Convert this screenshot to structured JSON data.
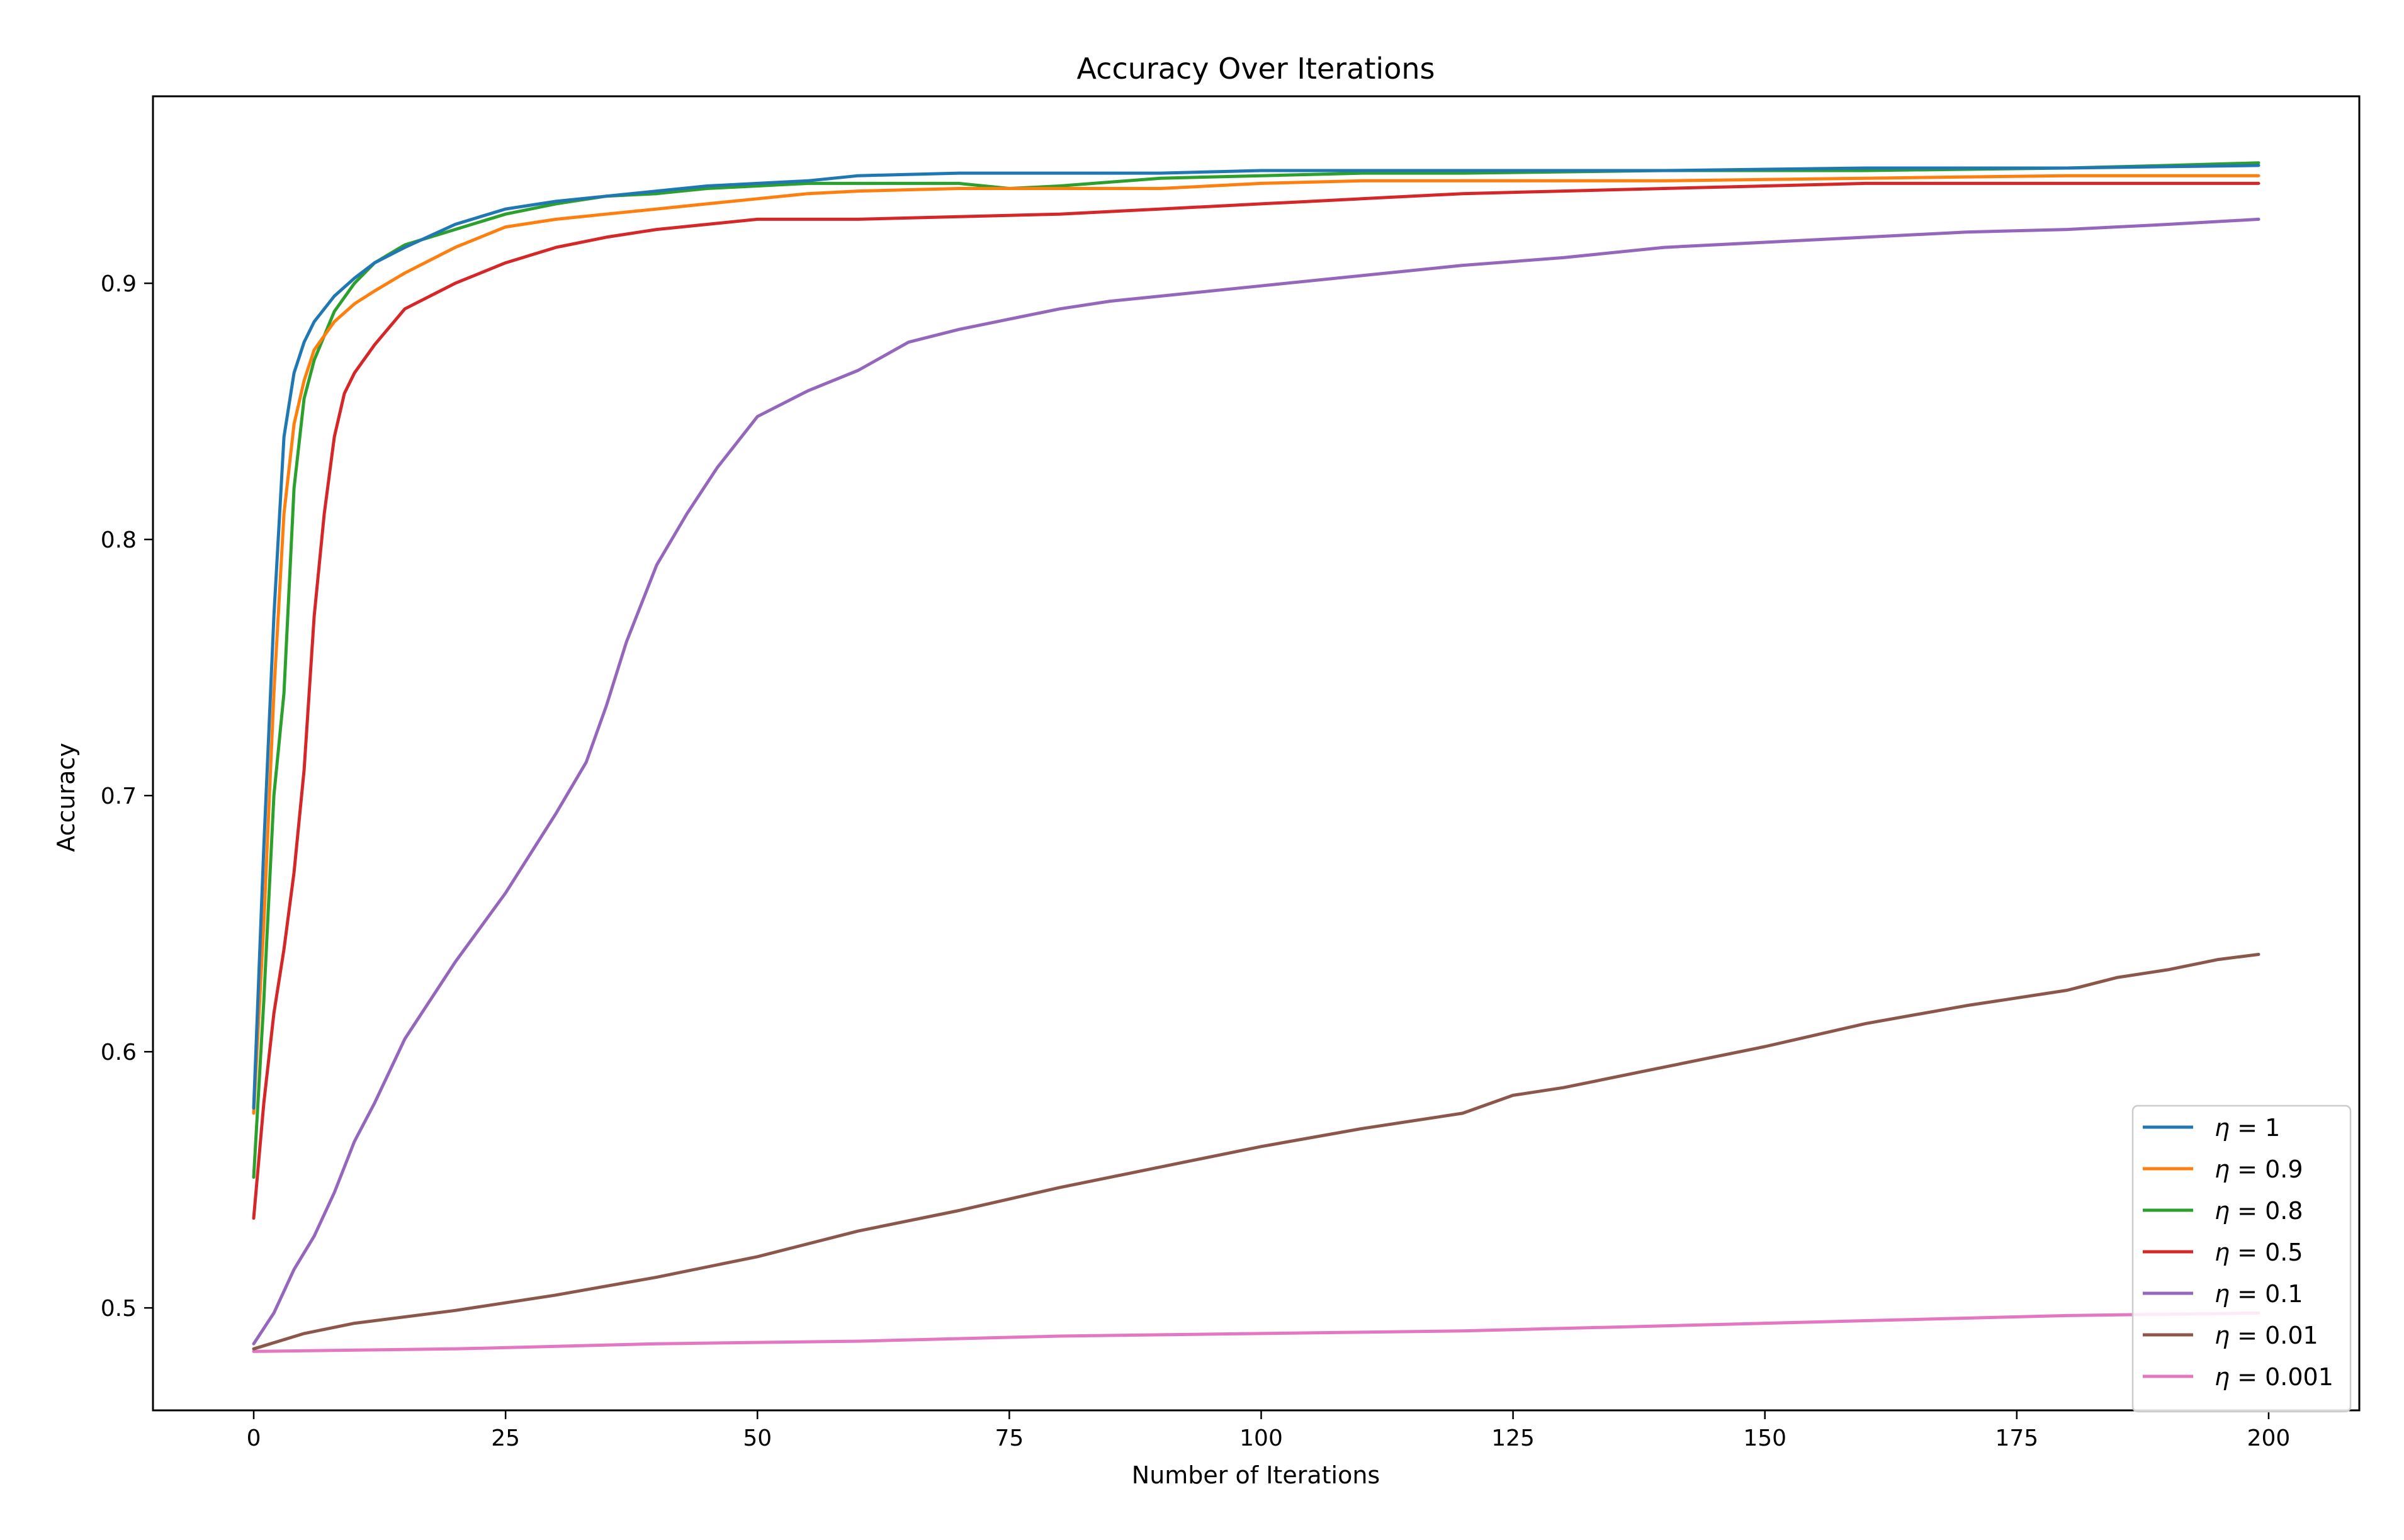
{
  "chart_data": {
    "type": "line",
    "title": "Accuracy Over Iterations",
    "xlabel": "Number of Iterations",
    "ylabel": "Accuracy",
    "xlim": [
      -10,
      209
    ],
    "ylim": [
      0.46,
      0.973
    ],
    "x_ticks": [
      0,
      25,
      50,
      75,
      100,
      125,
      150,
      175,
      200
    ],
    "x_tick_labels": [
      "0",
      "25",
      "50",
      "75",
      "100",
      "125",
      "150",
      "175",
      "200"
    ],
    "y_ticks": [
      0.5,
      0.6,
      0.7,
      0.8,
      0.9
    ],
    "y_tick_labels": [
      "0.5",
      "0.6",
      "0.7",
      "0.8",
      "0.9"
    ],
    "grid": false,
    "legend_position": "lower-right",
    "series": [
      {
        "name": "η = 1",
        "legend_symbol": "η",
        "legend_value": " = 1",
        "color": "#1f77b4",
        "points": [
          [
            0,
            0.578
          ],
          [
            1,
            0.68
          ],
          [
            2,
            0.77
          ],
          [
            3,
            0.84
          ],
          [
            4,
            0.865
          ],
          [
            5,
            0.877
          ],
          [
            6,
            0.885
          ],
          [
            8,
            0.895
          ],
          [
            10,
            0.902
          ],
          [
            12,
            0.908
          ],
          [
            15,
            0.914
          ],
          [
            20,
            0.923
          ],
          [
            25,
            0.929
          ],
          [
            30,
            0.932
          ],
          [
            35,
            0.934
          ],
          [
            40,
            0.936
          ],
          [
            45,
            0.938
          ],
          [
            50,
            0.939
          ],
          [
            55,
            0.94
          ],
          [
            60,
            0.942
          ],
          [
            70,
            0.943
          ],
          [
            80,
            0.943
          ],
          [
            90,
            0.943
          ],
          [
            100,
            0.944
          ],
          [
            120,
            0.944
          ],
          [
            140,
            0.944
          ],
          [
            160,
            0.945
          ],
          [
            180,
            0.945
          ],
          [
            199,
            0.946
          ]
        ]
      },
      {
        "name": "η = 0.9",
        "legend_symbol": "η",
        "legend_value": " = 0.9",
        "color": "#ff7f0e",
        "points": [
          [
            0,
            0.576
          ],
          [
            1,
            0.65
          ],
          [
            2,
            0.74
          ],
          [
            3,
            0.81
          ],
          [
            4,
            0.845
          ],
          [
            5,
            0.862
          ],
          [
            6,
            0.874
          ],
          [
            8,
            0.885
          ],
          [
            10,
            0.892
          ],
          [
            12,
            0.897
          ],
          [
            15,
            0.904
          ],
          [
            20,
            0.914
          ],
          [
            25,
            0.922
          ],
          [
            30,
            0.925
          ],
          [
            35,
            0.927
          ],
          [
            40,
            0.929
          ],
          [
            45,
            0.931
          ],
          [
            50,
            0.933
          ],
          [
            55,
            0.935
          ],
          [
            60,
            0.936
          ],
          [
            70,
            0.937
          ],
          [
            80,
            0.937
          ],
          [
            90,
            0.937
          ],
          [
            100,
            0.939
          ],
          [
            110,
            0.94
          ],
          [
            120,
            0.94
          ],
          [
            140,
            0.94
          ],
          [
            160,
            0.941
          ],
          [
            180,
            0.942
          ],
          [
            199,
            0.942
          ]
        ]
      },
      {
        "name": "η = 0.8",
        "legend_symbol": "η",
        "legend_value": " = 0.8",
        "color": "#2ca02c",
        "points": [
          [
            0,
            0.551
          ],
          [
            1,
            0.62
          ],
          [
            2,
            0.7
          ],
          [
            3,
            0.74
          ],
          [
            4,
            0.82
          ],
          [
            5,
            0.855
          ],
          [
            6,
            0.87
          ],
          [
            8,
            0.889
          ],
          [
            10,
            0.9
          ],
          [
            12,
            0.908
          ],
          [
            15,
            0.915
          ],
          [
            20,
            0.921
          ],
          [
            25,
            0.927
          ],
          [
            30,
            0.931
          ],
          [
            35,
            0.934
          ],
          [
            40,
            0.935
          ],
          [
            45,
            0.937
          ],
          [
            50,
            0.938
          ],
          [
            55,
            0.939
          ],
          [
            60,
            0.939
          ],
          [
            70,
            0.939
          ],
          [
            75,
            0.937
          ],
          [
            80,
            0.938
          ],
          [
            90,
            0.941
          ],
          [
            100,
            0.942
          ],
          [
            110,
            0.943
          ],
          [
            120,
            0.943
          ],
          [
            140,
            0.944
          ],
          [
            160,
            0.944
          ],
          [
            180,
            0.945
          ],
          [
            190,
            0.946
          ],
          [
            199,
            0.947
          ]
        ]
      },
      {
        "name": "η = 0.5",
        "legend_symbol": "η",
        "legend_value": " = 0.5",
        "color": "#d62728",
        "points": [
          [
            0,
            0.535
          ],
          [
            1,
            0.58
          ],
          [
            2,
            0.615
          ],
          [
            3,
            0.64
          ],
          [
            4,
            0.67
          ],
          [
            5,
            0.71
          ],
          [
            6,
            0.77
          ],
          [
            7,
            0.81
          ],
          [
            8,
            0.84
          ],
          [
            9,
            0.857
          ],
          [
            10,
            0.865
          ],
          [
            12,
            0.876
          ],
          [
            15,
            0.89
          ],
          [
            20,
            0.9
          ],
          [
            25,
            0.908
          ],
          [
            30,
            0.914
          ],
          [
            35,
            0.918
          ],
          [
            40,
            0.921
          ],
          [
            45,
            0.923
          ],
          [
            50,
            0.925
          ],
          [
            60,
            0.925
          ],
          [
            70,
            0.926
          ],
          [
            80,
            0.927
          ],
          [
            90,
            0.929
          ],
          [
            100,
            0.931
          ],
          [
            110,
            0.933
          ],
          [
            120,
            0.935
          ],
          [
            130,
            0.936
          ],
          [
            140,
            0.937
          ],
          [
            150,
            0.938
          ],
          [
            160,
            0.939
          ],
          [
            180,
            0.939
          ],
          [
            199,
            0.939
          ]
        ]
      },
      {
        "name": "η = 0.1",
        "legend_symbol": "η",
        "legend_value": " = 0.1",
        "color": "#9467bd",
        "points": [
          [
            0,
            0.486
          ],
          [
            2,
            0.498
          ],
          [
            4,
            0.515
          ],
          [
            6,
            0.528
          ],
          [
            8,
            0.545
          ],
          [
            10,
            0.565
          ],
          [
            12,
            0.58
          ],
          [
            15,
            0.605
          ],
          [
            20,
            0.635
          ],
          [
            25,
            0.662
          ],
          [
            30,
            0.693
          ],
          [
            33,
            0.713
          ],
          [
            35,
            0.735
          ],
          [
            37,
            0.76
          ],
          [
            40,
            0.79
          ],
          [
            43,
            0.81
          ],
          [
            46,
            0.828
          ],
          [
            50,
            0.848
          ],
          [
            55,
            0.858
          ],
          [
            60,
            0.866
          ],
          [
            65,
            0.877
          ],
          [
            70,
            0.882
          ],
          [
            75,
            0.886
          ],
          [
            80,
            0.89
          ],
          [
            85,
            0.893
          ],
          [
            90,
            0.895
          ],
          [
            100,
            0.899
          ],
          [
            110,
            0.903
          ],
          [
            120,
            0.907
          ],
          [
            130,
            0.91
          ],
          [
            140,
            0.914
          ],
          [
            150,
            0.916
          ],
          [
            160,
            0.918
          ],
          [
            170,
            0.92
          ],
          [
            180,
            0.921
          ],
          [
            190,
            0.923
          ],
          [
            199,
            0.925
          ]
        ]
      },
      {
        "name": "η = 0.01",
        "legend_symbol": "η",
        "legend_value": " = 0.01",
        "color": "#8c564b",
        "points": [
          [
            0,
            0.484
          ],
          [
            5,
            0.49
          ],
          [
            10,
            0.494
          ],
          [
            20,
            0.499
          ],
          [
            30,
            0.505
          ],
          [
            40,
            0.512
          ],
          [
            50,
            0.52
          ],
          [
            60,
            0.53
          ],
          [
            70,
            0.538
          ],
          [
            80,
            0.547
          ],
          [
            90,
            0.555
          ],
          [
            100,
            0.563
          ],
          [
            110,
            0.57
          ],
          [
            120,
            0.576
          ],
          [
            125,
            0.583
          ],
          [
            130,
            0.586
          ],
          [
            140,
            0.594
          ],
          [
            150,
            0.602
          ],
          [
            160,
            0.611
          ],
          [
            170,
            0.618
          ],
          [
            180,
            0.624
          ],
          [
            185,
            0.629
          ],
          [
            190,
            0.632
          ],
          [
            195,
            0.636
          ],
          [
            199,
            0.638
          ]
        ]
      },
      {
        "name": "η = 0.001",
        "legend_symbol": "η",
        "legend_value": " = 0.001",
        "color": "#e377c2",
        "points": [
          [
            0,
            0.483
          ],
          [
            20,
            0.484
          ],
          [
            40,
            0.486
          ],
          [
            60,
            0.487
          ],
          [
            80,
            0.489
          ],
          [
            100,
            0.49
          ],
          [
            120,
            0.491
          ],
          [
            140,
            0.493
          ],
          [
            160,
            0.495
          ],
          [
            180,
            0.497
          ],
          [
            199,
            0.498
          ]
        ]
      }
    ]
  }
}
